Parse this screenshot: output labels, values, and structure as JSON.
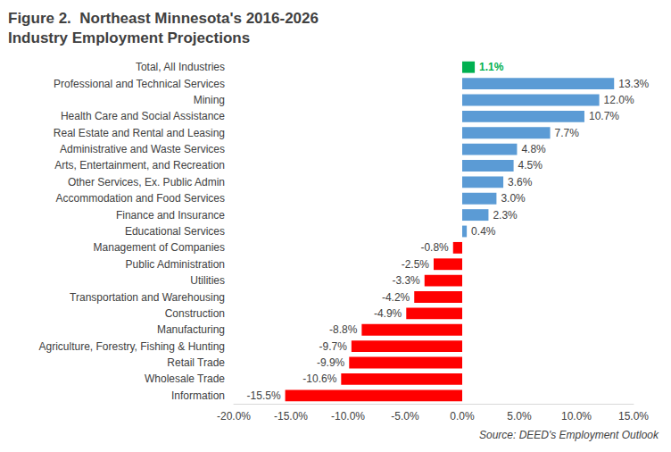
{
  "chart_data": {
    "type": "bar",
    "orientation": "horizontal",
    "title": "Figure 2.  Northeast Minnesota's 2016-2026\nIndustry Employment Projections",
    "annotation": "Source: DEED's Employment Outlook",
    "categories": [
      "Total, All Industries",
      "Professional and Technical Services",
      "Mining",
      "Health Care and Social Assistance",
      "Real Estate and Rental and Leasing",
      "Administrative and Waste Services",
      "Arts, Entertainment, and Recreation",
      "Other Services, Ex. Public Admin",
      "Accommodation and Food Services",
      "Finance and Insurance",
      "Educational Services",
      "Management of Companies",
      "Public Administration",
      "Utilities",
      "Transportation and Warehousing",
      "Construction",
      "Manufacturing",
      "Agriculture, Forestry, Fishing & Hunting",
      "Retail Trade",
      "Wholesale Trade",
      "Information"
    ],
    "values": [
      1.1,
      13.3,
      12.0,
      10.7,
      7.7,
      4.8,
      4.5,
      3.6,
      3.0,
      2.3,
      0.4,
      -0.8,
      -2.5,
      -3.3,
      -4.2,
      -4.9,
      -8.8,
      -9.7,
      -9.9,
      -10.6,
      -15.5
    ],
    "value_labels": [
      "1.1%",
      "13.3%",
      "12.0%",
      "10.7%",
      "7.7%",
      "4.8%",
      "4.5%",
      "3.6%",
      "3.0%",
      "2.3%",
      "0.4%",
      "-0.8%",
      "-2.5%",
      "-3.3%",
      "-4.2%",
      "-4.9%",
      "-8.8%",
      "-9.7%",
      "-9.9%",
      "-10.6%",
      "-15.5%"
    ],
    "colors": [
      "#00b050",
      "#5b9bd5",
      "#5b9bd5",
      "#5b9bd5",
      "#5b9bd5",
      "#5b9bd5",
      "#5b9bd5",
      "#5b9bd5",
      "#5b9bd5",
      "#5b9bd5",
      "#5b9bd5",
      "#ff0000",
      "#ff0000",
      "#ff0000",
      "#ff0000",
      "#ff0000",
      "#ff0000",
      "#ff0000",
      "#ff0000",
      "#ff0000",
      "#ff0000"
    ],
    "xlim": [
      -20,
      15
    ],
    "xticks": [
      {
        "value": -20,
        "label": "-20.0%"
      },
      {
        "value": -15,
        "label": "-15.0%"
      },
      {
        "value": -10,
        "label": "-10.0%"
      },
      {
        "value": -5,
        "label": "-5.0%"
      },
      {
        "value": 0,
        "label": "0.0%"
      },
      {
        "value": 5,
        "label": "5.0%"
      },
      {
        "value": 10,
        "label": "10.0%"
      },
      {
        "value": 15,
        "label": "15.0%"
      }
    ],
    "grid": false,
    "data_labels": true
  }
}
